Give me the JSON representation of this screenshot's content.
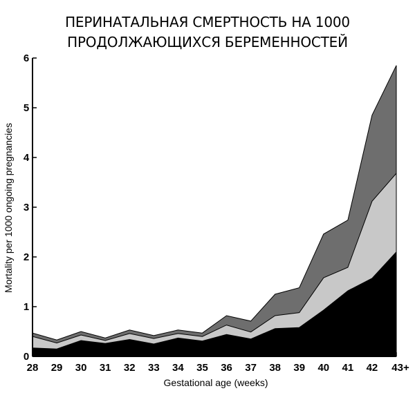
{
  "chart_data": {
    "type": "area",
    "title_lines": [
      "ПЕРИНАТАЛЬНАЯ СМЕРТНОСТЬ НА 1000",
      "ПРОДОЛЖАЮЩИХСЯ БЕРЕМЕННОСТЕЙ"
    ],
    "xlabel": "Gestational age (weeks)",
    "ylabel": "Mortality per 1000 ongoing pregnancies",
    "categories": [
      "28",
      "29",
      "30",
      "31",
      "32",
      "33",
      "34",
      "35",
      "36",
      "37",
      "38",
      "39",
      "40",
      "41",
      "42",
      "43+"
    ],
    "ylim": [
      0,
      6
    ],
    "yticks": [
      "0",
      "1",
      "2",
      "3",
      "4",
      "5",
      "6"
    ],
    "stacked_cumulative": true,
    "series": [
      {
        "color": "#6e6e6e",
        "values": [
          0.47,
          0.33,
          0.5,
          0.37,
          0.53,
          0.42,
          0.53,
          0.47,
          0.82,
          0.71,
          1.25,
          1.38,
          2.46,
          2.74,
          4.85,
          5.85
        ]
      },
      {
        "color": "#c8c8c8",
        "values": [
          0.4,
          0.27,
          0.43,
          0.32,
          0.46,
          0.36,
          0.46,
          0.4,
          0.63,
          0.49,
          0.82,
          0.88,
          1.58,
          1.79,
          3.12,
          3.68
        ]
      },
      {
        "color": "#000000",
        "values": [
          0.17,
          0.15,
          0.32,
          0.26,
          0.34,
          0.25,
          0.37,
          0.31,
          0.44,
          0.35,
          0.56,
          0.58,
          0.93,
          1.32,
          1.57,
          2.1
        ]
      }
    ],
    "grid": false,
    "legend": "none"
  }
}
